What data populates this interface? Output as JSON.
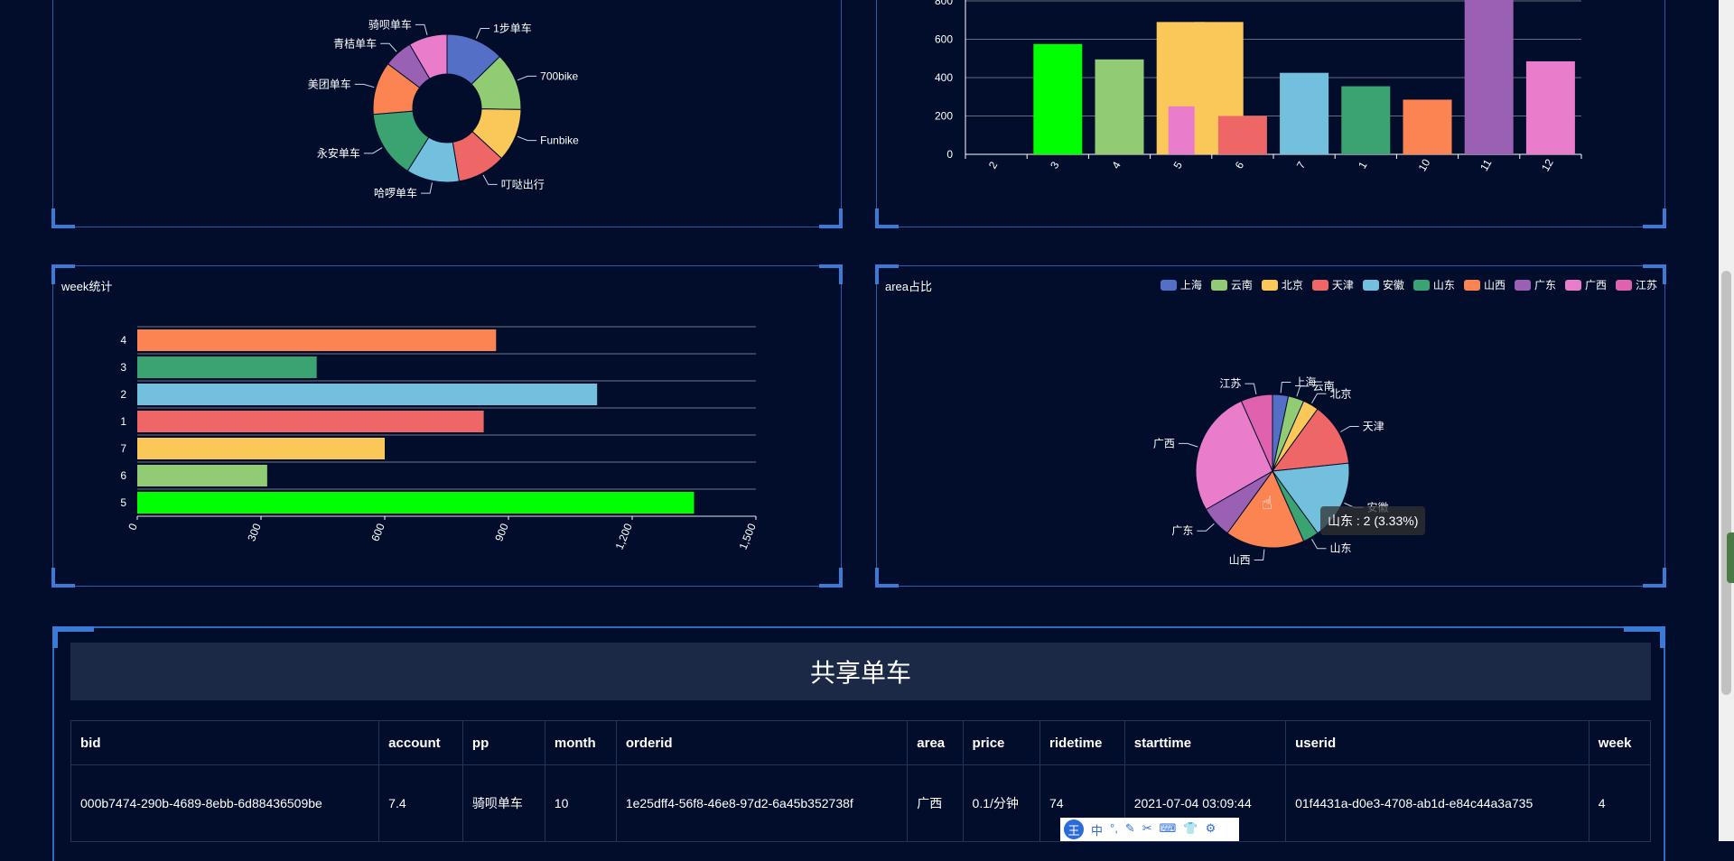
{
  "brand_pie": {
    "chart_data": {
      "type": "pie",
      "donut": true,
      "labels": [
        "1步单车",
        "700bike",
        "Funbike",
        "叮哒出行",
        "哈啰单车",
        "永安单车",
        "美团单车",
        "青桔单车",
        "骑呗单车"
      ],
      "values": [
        12,
        12,
        11,
        10,
        11,
        14,
        11,
        6,
        8
      ],
      "colors": [
        "#5470c6",
        "#91cc75",
        "#fac858",
        "#ee6666",
        "#73c0de",
        "#3ba272",
        "#fc8452",
        "#9a60b4",
        "#ea7ccc"
      ]
    }
  },
  "month_bar": {
    "chart_data": {
      "type": "bar",
      "categories": [
        "2",
        "3",
        "4",
        "5",
        "6",
        "7",
        "1",
        "10",
        "11",
        "12"
      ],
      "values": [
        0,
        575,
        495,
        690,
        200,
        425,
        355,
        285,
        820,
        485
      ],
      "extra_bar": {
        "category": "5",
        "value": 250,
        "color": "#ea7ccc"
      },
      "colors": [
        "#00ff00",
        "#00ff00",
        "#91cc75",
        "#fac858",
        "#ee6666",
        "#73c0de",
        "#3ba272",
        "#fc8452",
        "#9a60b4",
        "#ea7ccc"
      ],
      "yticks": [
        0,
        200,
        400,
        600,
        800
      ],
      "ylim": [
        0,
        800
      ]
    }
  },
  "week_panel": {
    "title": "week统计",
    "chart_data": {
      "type": "bar",
      "orientation": "horizontal",
      "categories": [
        "4",
        "3",
        "2",
        "1",
        "7",
        "6",
        "5"
      ],
      "values": [
        870,
        435,
        1115,
        840,
        600,
        315,
        1350
      ],
      "colors": [
        "#fc8452",
        "#3ba272",
        "#73c0de",
        "#ee6666",
        "#fac858",
        "#91cc75",
        "#00ff00"
      ],
      "xticks": [
        "0",
        "300",
        "600",
        "900",
        "1,200",
        "1,500"
      ],
      "xlim": [
        0,
        1500
      ]
    }
  },
  "area_panel": {
    "title": "area占比",
    "chart_data": {
      "type": "pie",
      "labels": [
        "上海",
        "云南",
        "北京",
        "天津",
        "安徽",
        "山东",
        "山西",
        "广东",
        "广西",
        "江苏"
      ],
      "values": [
        2,
        2,
        2,
        8,
        10,
        2,
        10,
        4,
        16,
        4
      ],
      "colors": [
        "#5470c6",
        "#91cc75",
        "#fac858",
        "#ee6666",
        "#73c0de",
        "#3ba272",
        "#fc8452",
        "#9a60b4",
        "#ea7ccc",
        "#e062ae"
      ]
    },
    "tooltip": "山东 : 2 (3.33%)"
  },
  "table": {
    "title": "共享单车",
    "columns": [
      "bid",
      "account",
      "pp",
      "month",
      "orderid",
      "area",
      "price",
      "ridetime",
      "starttime",
      "userid",
      "week"
    ],
    "rows": [
      [
        "000b7474-290b-4689-8ebb-6d88436509be",
        "7.4",
        "骑呗单车",
        "10",
        "1e25dff4-56f8-46e8-97d2-6a45b352738f",
        "广西",
        "0.1/分钟",
        "74",
        "2021-07-04 03:09:44",
        "01f4431a-d0e3-4708-ab1d-e84c44a3a735",
        "4"
      ]
    ]
  },
  "ime": {
    "logo": "王",
    "items": [
      "中",
      "°,",
      "✎",
      "✂",
      "⌨",
      "👕",
      "⚙"
    ]
  }
}
